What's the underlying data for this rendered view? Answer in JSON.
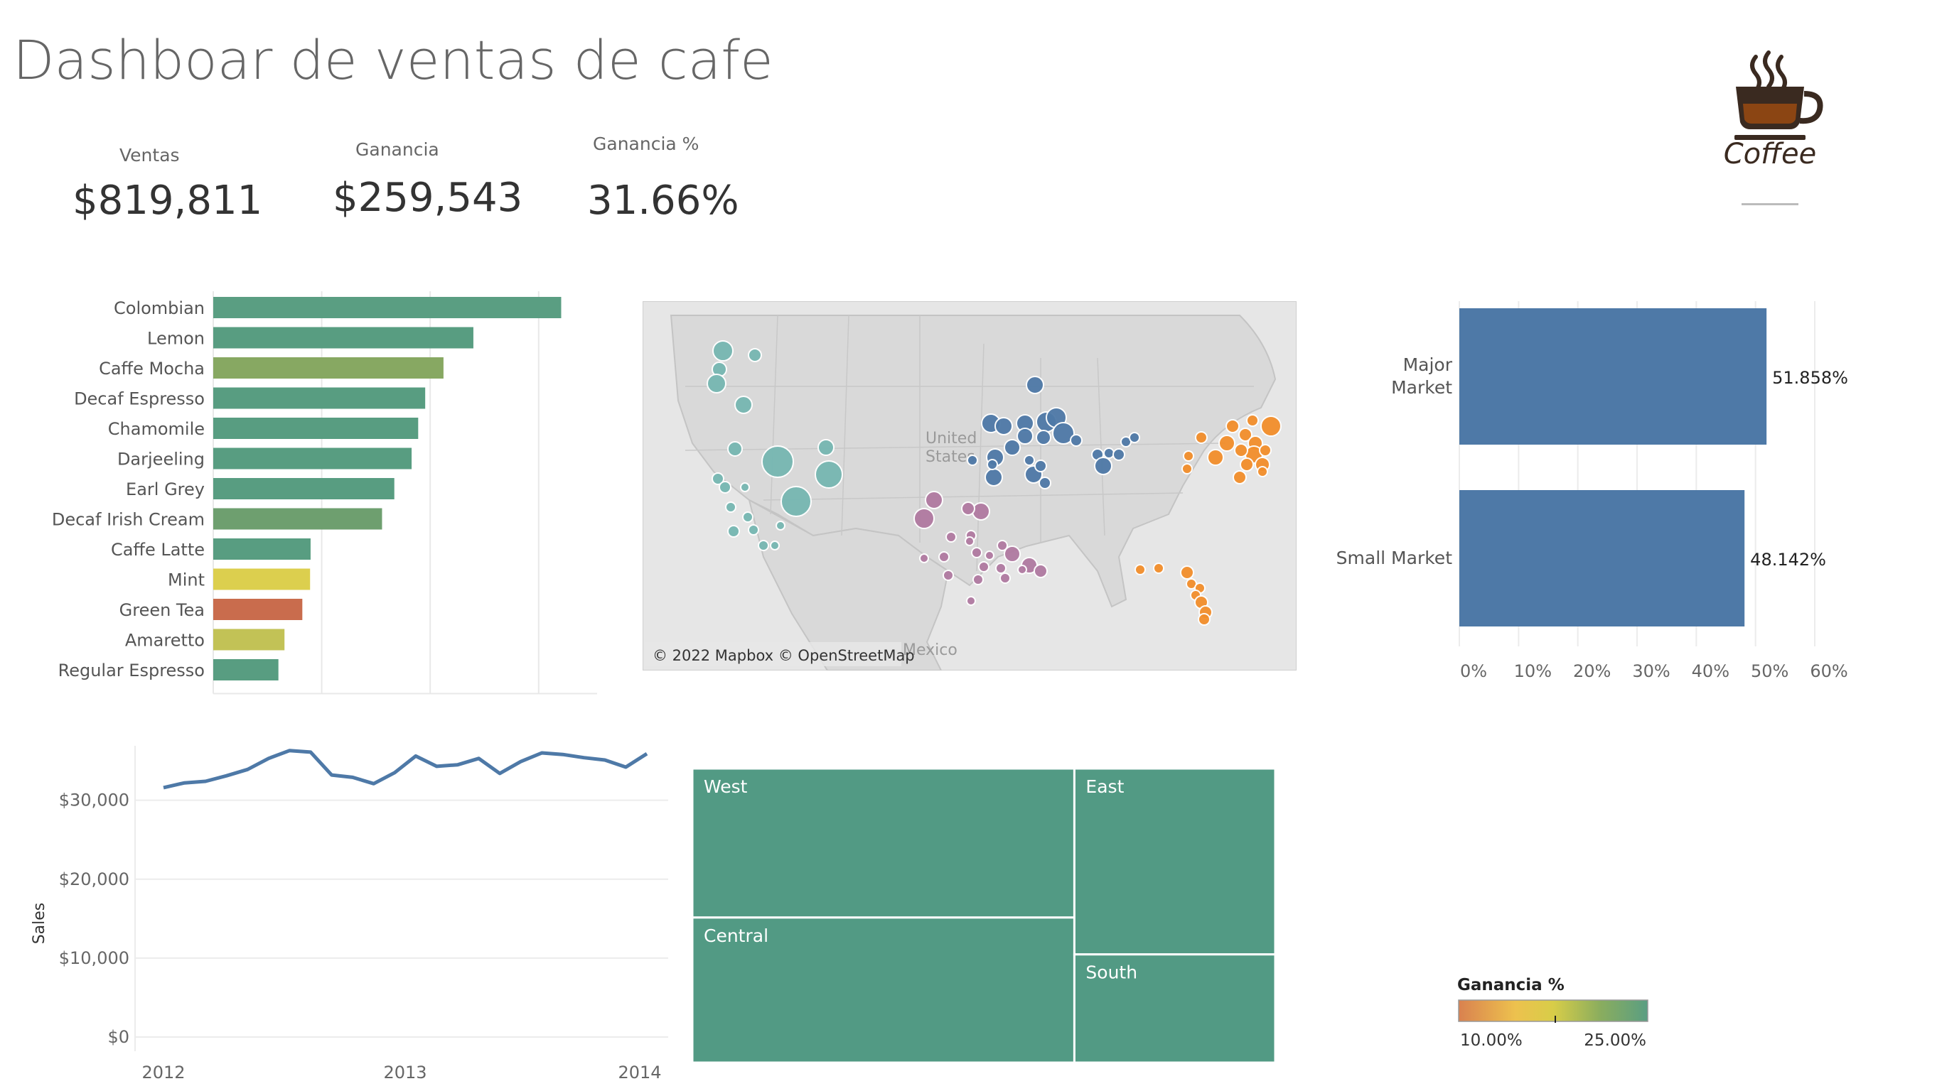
{
  "header": {
    "title": "Dashboar de ventas de cafe"
  },
  "kpis": [
    {
      "label": "Ventas",
      "value": "$819,811"
    },
    {
      "label": "Ganancia",
      "value": "$259,543"
    },
    {
      "label": "Ganancia %",
      "value": "31.66%"
    }
  ],
  "logo": {
    "text": "Coffee",
    "icon": "coffee-cup-icon",
    "color": "#8b4513"
  },
  "map": {
    "attribution": "© 2022 Mapbox © OpenStreetMap",
    "label_us_1": "United",
    "label_us_2": "States",
    "label_mexico": "Mexico",
    "region_colors": {
      "West": "#76b7b2",
      "Central": "#4e79a7",
      "South": "#b07aa1",
      "East": "#f28e2b"
    }
  },
  "legend": {
    "title": "Ganancia %",
    "min_label": "10.00%",
    "max_label": "25.00%"
  },
  "chart_data": [
    {
      "type": "bar",
      "orientation": "horizontal",
      "categories": [
        "Colombian",
        "Lemon",
        "Caffe Mocha",
        "Decaf Espresso",
        "Chamomile",
        "Darjeeling",
        "Earl Grey",
        "Decaf Irish Cream",
        "Caffe Latte",
        "Mint",
        "Green Tea",
        "Amaretto",
        "Regular Espresso"
      ],
      "values": [
        128311,
        95926,
        84904,
        78162,
        75578,
        73151,
        66772,
        62248,
        35899,
        35710,
        32850,
        26269,
        24031
      ],
      "colors": [
        "#5a9e82",
        "#589d81",
        "#87a862",
        "#589d81",
        "#589d81",
        "#589d81",
        "#589d81",
        "#6e9f6f",
        "#589d81",
        "#dccf4e",
        "#c96c4d",
        "#c2c256",
        "#589d81"
      ],
      "xlim": [
        0,
        135000
      ]
    },
    {
      "type": "bar",
      "orientation": "horizontal",
      "categories": [
        "Major Market",
        "Small Market"
      ],
      "category_lines": [
        [
          "Major",
          "Market"
        ],
        [
          "Small Market"
        ]
      ],
      "values": [
        51.858,
        48.142
      ],
      "value_labels": [
        "51.858%",
        "48.142%"
      ],
      "xticks": [
        "0%",
        "10%",
        "20%",
        "30%",
        "40%",
        "50%",
        "60%"
      ],
      "xlim": [
        0,
        60
      ],
      "color": "#4e79a7"
    },
    {
      "type": "line",
      "ylabel": "Sales",
      "x_labels": [
        "2012",
        "2013",
        "2014"
      ],
      "y_ticks": [
        "$0",
        "$10,000",
        "$20,000",
        "$30,000"
      ],
      "ylim": [
        0,
        36000
      ],
      "values": [
        31600,
        32200,
        32400,
        33100,
        33900,
        35300,
        36300,
        36100,
        33200,
        32900,
        32100,
        33500,
        35600,
        34300,
        34500,
        35300,
        33400,
        34900,
        36000,
        35800,
        35400,
        35100,
        34200,
        35900
      ],
      "color": "#4e79a7"
    },
    {
      "type": "treemap",
      "items": [
        {
          "name": "West",
          "value": 272264
        },
        {
          "name": "Central",
          "value": 265045
        },
        {
          "name": "East",
          "value": 178576
        },
        {
          "name": "South",
          "value": 103926
        }
      ],
      "color": "#529a84"
    }
  ]
}
